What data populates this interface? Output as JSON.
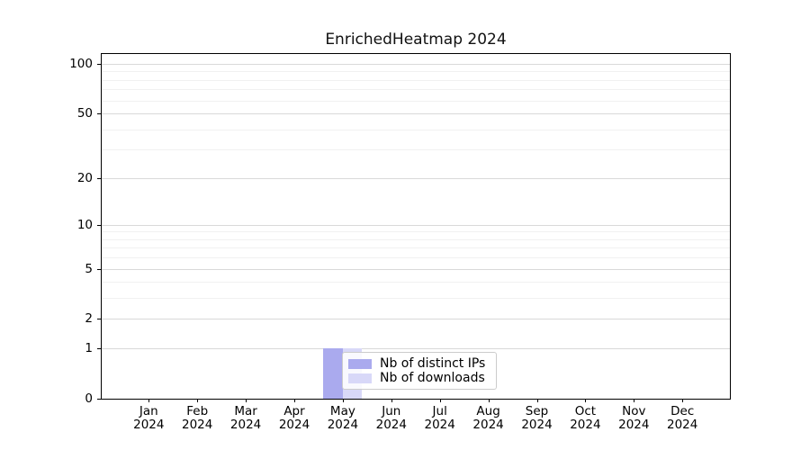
{
  "figure": {
    "title": "EnrichedHeatmap 2024"
  },
  "chart_data": {
    "type": "bar",
    "title": "EnrichedHeatmap 2024",
    "categories": [
      "Jan 2024",
      "Feb 2024",
      "Mar 2024",
      "Apr 2024",
      "May 2024",
      "Jun 2024",
      "Jul 2024",
      "Aug 2024",
      "Sep 2024",
      "Oct 2024",
      "Nov 2024",
      "Dec 2024"
    ],
    "month_labels": [
      "Jan",
      "Feb",
      "Mar",
      "Apr",
      "May",
      "Jun",
      "Jul",
      "Aug",
      "Sep",
      "Oct",
      "Nov",
      "Dec"
    ],
    "year_label": "2024",
    "series": [
      {
        "name": "Nb of distinct IPs",
        "color": "#aaaaee",
        "values": [
          0,
          0,
          0,
          0,
          1,
          0,
          0,
          0,
          0,
          0,
          0,
          0
        ]
      },
      {
        "name": "Nb of downloads",
        "color": "#d8d8f8",
        "values": [
          0,
          0,
          0,
          0,
          1,
          0,
          0,
          0,
          0,
          0,
          0,
          0
        ]
      }
    ],
    "xlabel": "",
    "ylabel": "",
    "yscale": "log10(1+y)",
    "ylim": [
      0,
      115
    ],
    "yticks_major": [
      0,
      1,
      2,
      5,
      10,
      20,
      50,
      100
    ],
    "yticks_minor": [
      3,
      4,
      6,
      7,
      8,
      9,
      30,
      40,
      60,
      70,
      80,
      90
    ],
    "grid": "both",
    "legend_position": "lower center",
    "colors": {
      "grid_major": "#d9d9d9",
      "grid_minor": "#f1f1f1",
      "spine": "#000000",
      "distinct_ips_bar": "#aaaaee",
      "downloads_bar": "#d8d8f8"
    }
  }
}
